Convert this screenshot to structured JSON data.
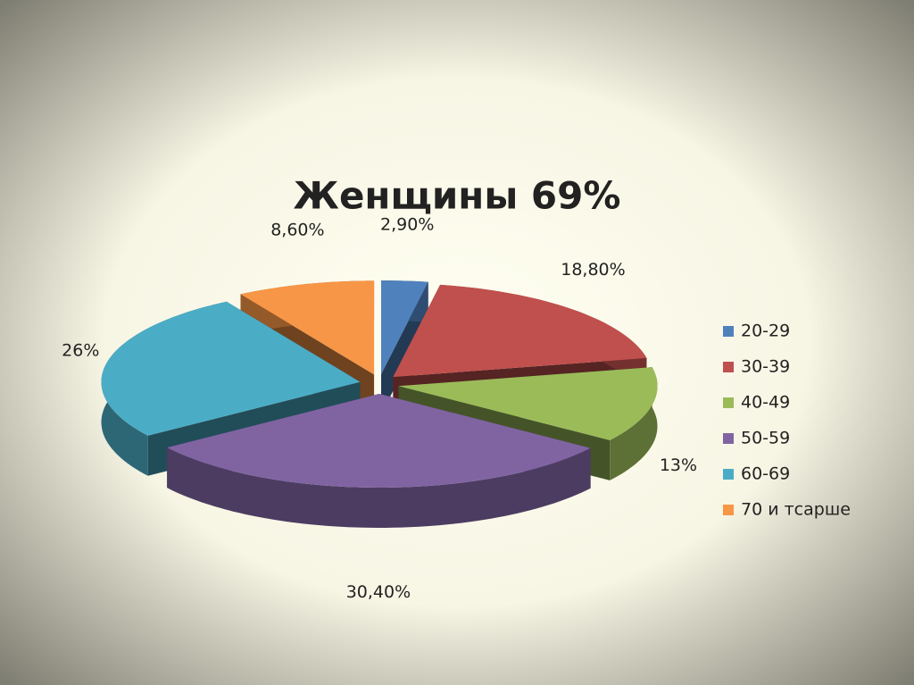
{
  "chart_data": {
    "type": "pie3d",
    "title": "Женщины 69%",
    "categories": [
      "20-29",
      "30-39",
      "40-49",
      "50-59",
      "60-69",
      "70 и тсарше"
    ],
    "values": [
      2.9,
      18.8,
      13,
      30.4,
      26,
      8.6
    ],
    "value_labels": [
      "2,90%",
      "18,80%",
      "13%",
      "30,40%",
      "26%",
      "8,60%"
    ],
    "colors": [
      "#4f81bd",
      "#c0504d",
      "#9bbb59",
      "#8064a2",
      "#4bacc6",
      "#f79646"
    ],
    "legend": "right"
  }
}
